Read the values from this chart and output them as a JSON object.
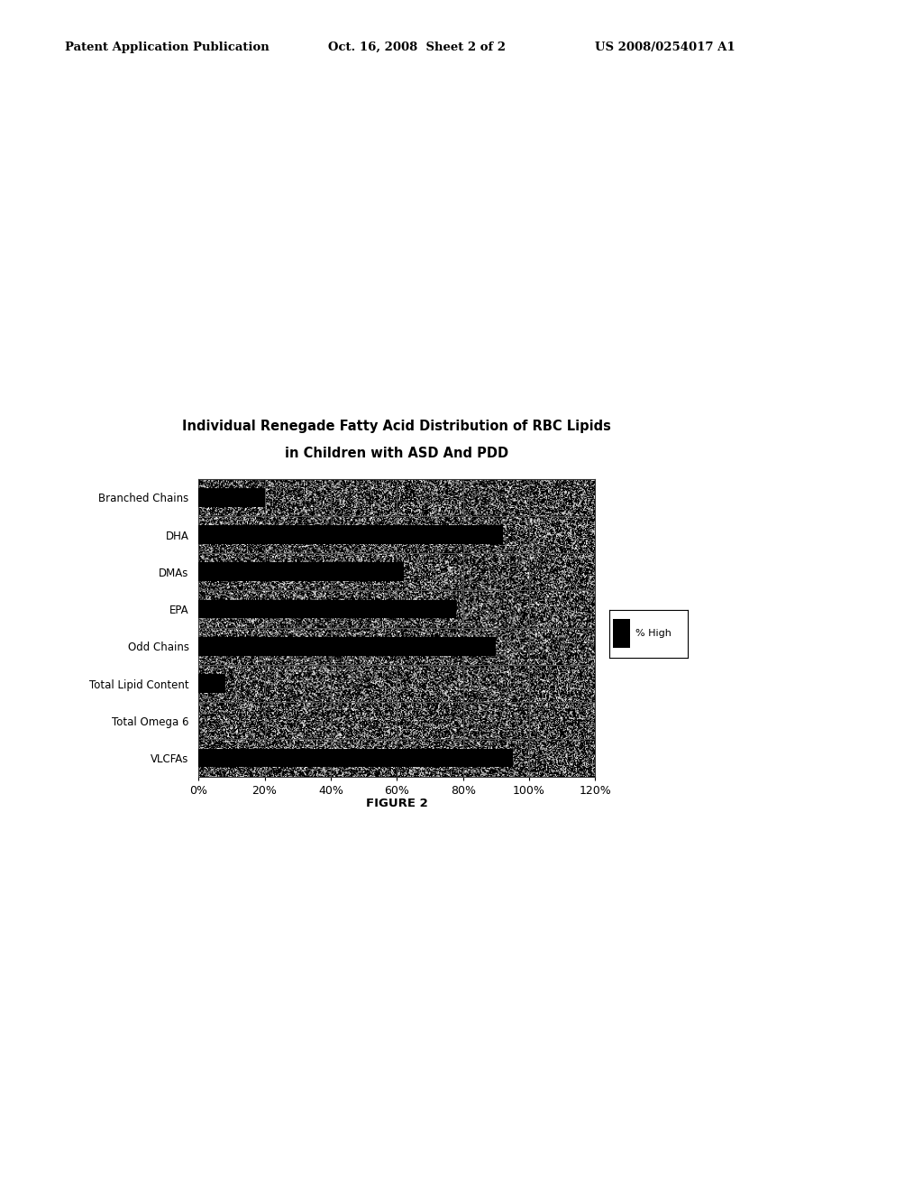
{
  "title_line1": "Individual Renegade Fatty Acid Distribution of RBC Lipids",
  "title_line2": "in Children with ASD And PDD",
  "figure_label": "FIGURE 2",
  "categories": [
    "Branched Chains",
    "DHA",
    "DMAs",
    "EPA",
    "Odd Chains",
    "Total Lipid Content",
    "Total Omega 6",
    "VLCFAs"
  ],
  "values": [
    20,
    92,
    62,
    78,
    90,
    8,
    0,
    95
  ],
  "bar_color": "#000000",
  "background_color": "#ffffff",
  "header_text_left": "Patent Application Publication",
  "header_text_mid": "Oct. 16, 2008  Sheet 2 of 2",
  "header_text_right": "US 2008/0254017 A1",
  "legend_label": "% High",
  "xlim": [
    0,
    120
  ],
  "xtick_labels": [
    "0%",
    "20%",
    "40%",
    "60%",
    "80%",
    "100%",
    "120%"
  ],
  "xtick_values": [
    0,
    20,
    40,
    60,
    80,
    100,
    120
  ],
  "chart_bg_color": "#c8c8c8",
  "grid_color": "#888888",
  "noise_alpha": 0.45
}
